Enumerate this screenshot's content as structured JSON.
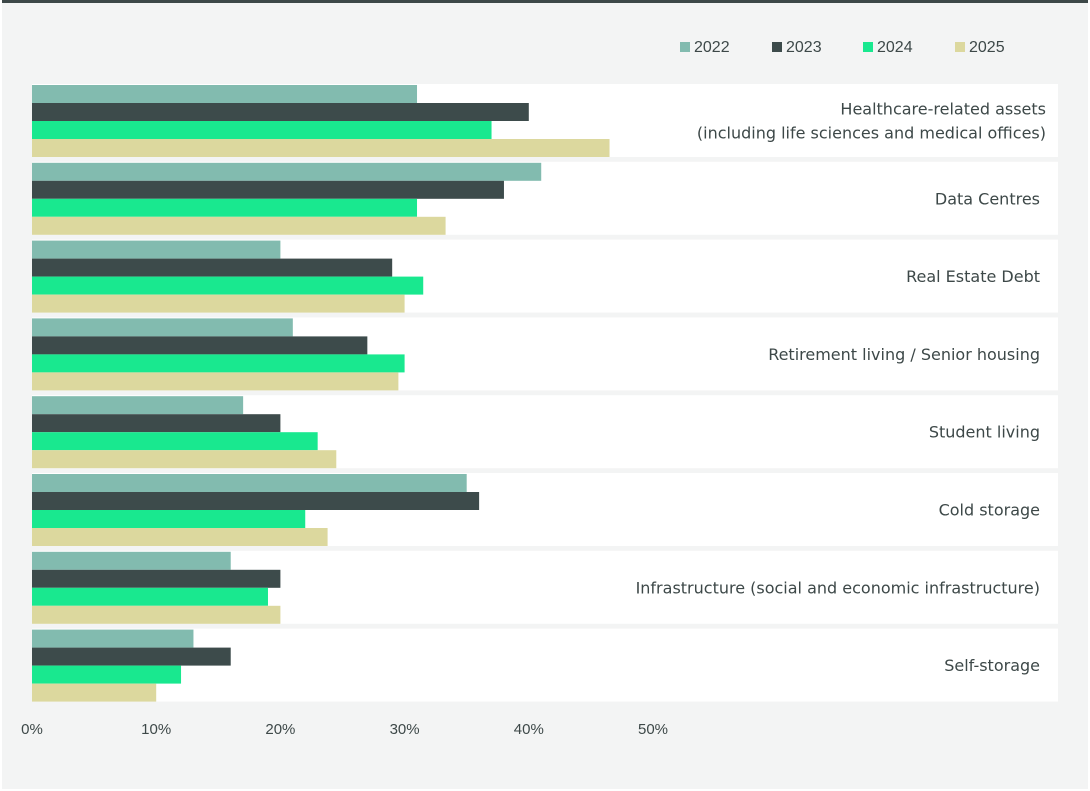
{
  "chart_data": {
    "type": "bar",
    "orientation": "horizontal",
    "title": "",
    "xlabel": "",
    "ylabel": "",
    "xlim": [
      0,
      50
    ],
    "x_ticks": [
      "0%",
      "10%",
      "20%",
      "30%",
      "40%",
      "50%"
    ],
    "legend_position": "top-right",
    "grid": false,
    "categories": [
      [
        "Healthcare-related assets",
        "(including life sciences and medical offices)"
      ],
      [
        "Data Centres"
      ],
      [
        "Real Estate Debt"
      ],
      [
        "Retirement living / Senior housing"
      ],
      [
        "Student living"
      ],
      [
        "Cold storage"
      ],
      [
        "Infrastructure (social and economic infrastructure)"
      ],
      [
        "Self-storage"
      ]
    ],
    "series": [
      {
        "name": "2022",
        "color": "#82bbaf",
        "values": [
          31,
          41,
          20,
          21,
          17,
          35,
          16,
          13
        ]
      },
      {
        "name": "2023",
        "color": "#3d4b4b",
        "values": [
          40,
          38,
          29,
          27,
          20,
          36,
          20,
          16
        ]
      },
      {
        "name": "2024",
        "color": "#19e88f",
        "values": [
          37,
          31,
          31.5,
          30,
          23,
          22,
          19,
          12
        ]
      },
      {
        "name": "2025",
        "color": "#dcd89e",
        "values": [
          46.5,
          33.3,
          30,
          29.5,
          24.5,
          23.8,
          20,
          10
        ]
      }
    ]
  }
}
